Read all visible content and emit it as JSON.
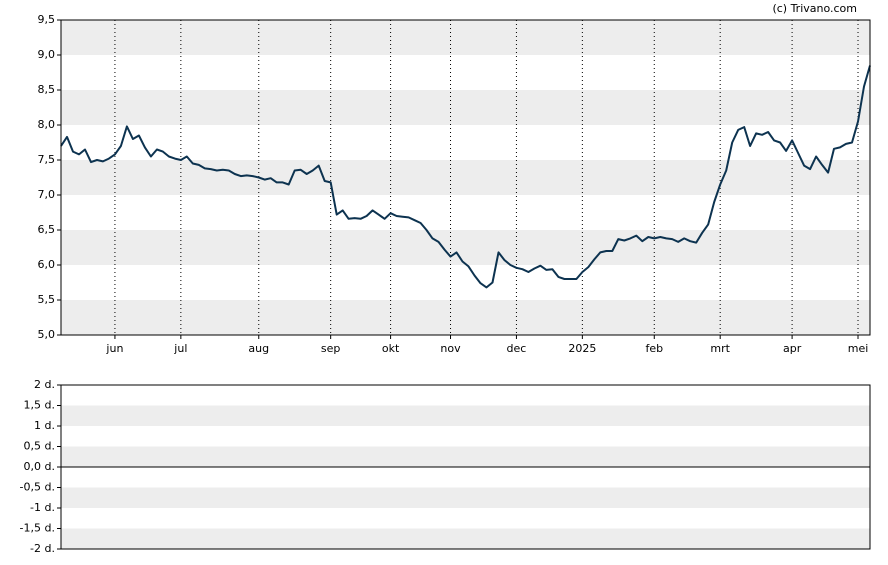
{
  "chart_data": [
    {
      "type": "line",
      "source": "(c) Trivano.com",
      "color": "#0d3350",
      "grid": true,
      "ylim": [
        5,
        9.5
      ],
      "yticks": [
        {
          "value": 5,
          "label": "5,0"
        },
        {
          "value": 5.5,
          "label": "5,5"
        },
        {
          "value": 6,
          "label": "6,0"
        },
        {
          "value": 6.5,
          "label": "6,5"
        },
        {
          "value": 7,
          "label": "7,0"
        },
        {
          "value": 7.5,
          "label": "7,5"
        },
        {
          "value": 8,
          "label": "8,0"
        },
        {
          "value": 8.5,
          "label": "8,5"
        },
        {
          "value": 9,
          "label": "9,0"
        },
        {
          "value": 9.5,
          "label": "9,5"
        }
      ],
      "categories": [
        null,
        null,
        null,
        null,
        null,
        null,
        null,
        null,
        null,
        "jun",
        null,
        null,
        null,
        null,
        null,
        null,
        null,
        null,
        null,
        null,
        "jul",
        null,
        null,
        null,
        null,
        null,
        null,
        null,
        null,
        null,
        null,
        null,
        null,
        "aug",
        null,
        null,
        null,
        null,
        null,
        null,
        null,
        null,
        null,
        null,
        null,
        "sep",
        null,
        null,
        null,
        null,
        null,
        null,
        null,
        null,
        null,
        "okt",
        null,
        null,
        null,
        null,
        null,
        null,
        null,
        null,
        null,
        "nov",
        null,
        null,
        null,
        null,
        null,
        null,
        null,
        null,
        null,
        null,
        "dec",
        null,
        null,
        null,
        null,
        null,
        null,
        null,
        null,
        null,
        null,
        "2025",
        null,
        null,
        null,
        null,
        null,
        null,
        null,
        null,
        null,
        null,
        null,
        "feb",
        null,
        null,
        null,
        null,
        null,
        null,
        null,
        null,
        null,
        null,
        "mrt",
        null,
        null,
        null,
        null,
        null,
        null,
        null,
        null,
        null,
        null,
        null,
        "apr",
        null,
        null,
        null,
        null,
        null,
        null,
        null,
        null,
        null,
        null,
        "mei",
        null,
        null
      ],
      "values": [
        7.7,
        7.83,
        7.62,
        7.58,
        7.65,
        7.47,
        7.5,
        7.48,
        7.52,
        7.58,
        7.7,
        7.98,
        7.8,
        7.85,
        7.68,
        7.55,
        7.65,
        7.62,
        7.55,
        7.52,
        7.5,
        7.55,
        7.45,
        7.43,
        7.38,
        7.37,
        7.35,
        7.36,
        7.35,
        7.3,
        7.27,
        7.28,
        7.27,
        7.25,
        7.22,
        7.24,
        7.18,
        7.18,
        7.15,
        7.35,
        7.36,
        7.3,
        7.35,
        7.42,
        7.2,
        7.18,
        6.72,
        6.78,
        6.66,
        6.67,
        6.66,
        6.7,
        6.78,
        6.72,
        6.66,
        6.74,
        6.7,
        6.69,
        6.68,
        6.64,
        6.6,
        6.5,
        6.38,
        6.33,
        6.22,
        6.12,
        6.18,
        6.05,
        5.98,
        5.85,
        5.74,
        5.68,
        5.75,
        6.18,
        6.07,
        6.0,
        5.96,
        5.94,
        5.9,
        5.95,
        5.99,
        5.93,
        5.94,
        5.83,
        5.8,
        5.8,
        5.8,
        5.9,
        5.97,
        6.08,
        6.18,
        6.2,
        6.2,
        6.37,
        6.35,
        6.38,
        6.42,
        6.34,
        6.4,
        6.38,
        6.4,
        6.38,
        6.37,
        6.33,
        6.38,
        6.34,
        6.32,
        6.46,
        6.58,
        6.9,
        7.15,
        7.35,
        7.75,
        7.93,
        7.97,
        7.7,
        7.88,
        7.86,
        7.9,
        7.78,
        7.75,
        7.63,
        7.78,
        7.6,
        7.42,
        7.37,
        7.55,
        7.43,
        7.32,
        7.66,
        7.68,
        7.73,
        7.75,
        8.05,
        8.55,
        8.85
      ]
    },
    {
      "type": "bar",
      "grid": true,
      "ylim": [
        -2,
        2
      ],
      "yticks": [
        {
          "value": -2,
          "label": "-2 d."
        },
        {
          "value": -1.5,
          "label": "-1,5 d."
        },
        {
          "value": -1,
          "label": "-1 d."
        },
        {
          "value": -0.5,
          "label": "-0,5 d."
        },
        {
          "value": 0,
          "label": "0,0 d."
        },
        {
          "value": 0.5,
          "label": "0,5 d."
        },
        {
          "value": 1,
          "label": "1 d."
        },
        {
          "value": 1.5,
          "label": "1,5 d."
        },
        {
          "value": 2,
          "label": "2 d."
        }
      ]
    }
  ]
}
